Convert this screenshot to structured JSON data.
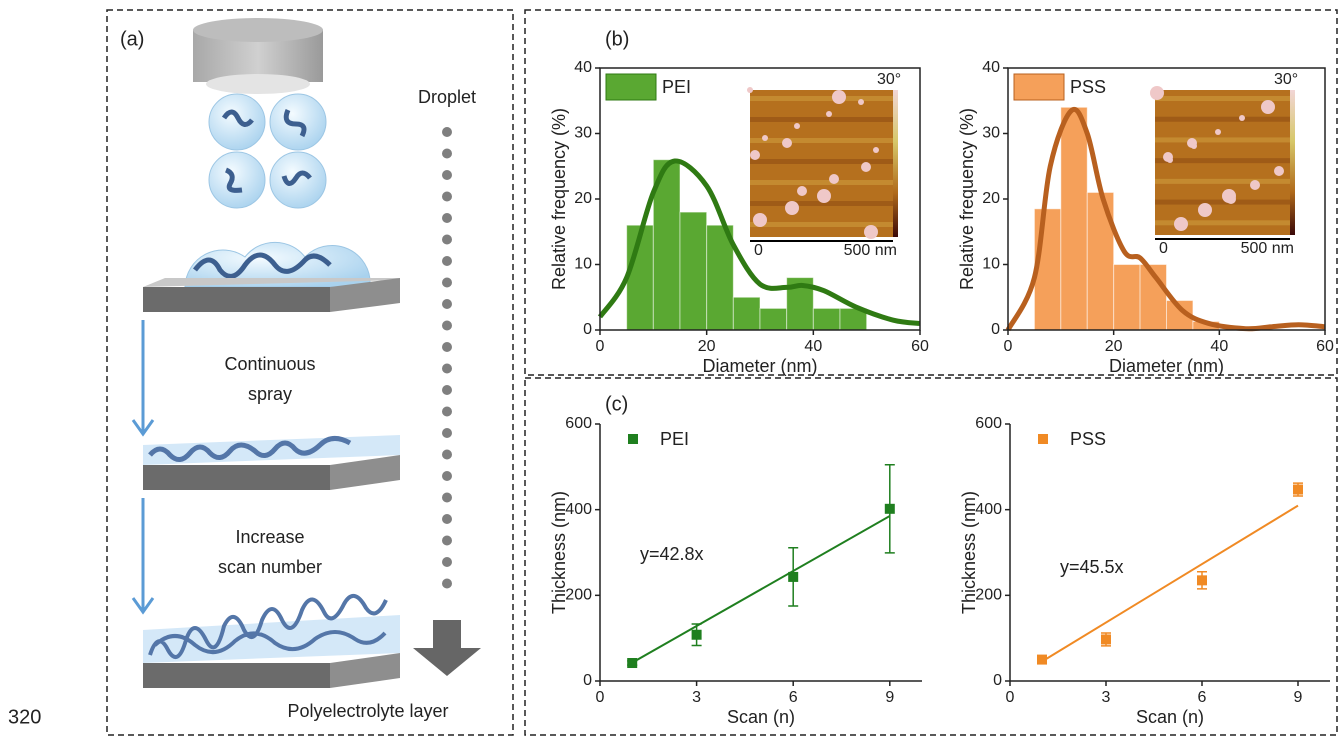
{
  "page_number": "320",
  "panel_labels": [
    "(a)",
    "(b)",
    "(c)"
  ],
  "diagram": {
    "droplet": "Droplet",
    "step1": [
      "Continuous",
      "spray"
    ],
    "step2": [
      "Increase",
      "scan number"
    ],
    "result": "Polyelectrolyte layer"
  },
  "chart_data": [
    {
      "type": "histogram",
      "x_label": "Diameter (nm)",
      "y_label": "Relative frequency (%)",
      "xlim": [
        0,
        60
      ],
      "xticks": [
        0,
        20,
        40,
        60
      ],
      "ylim": [
        0,
        40
      ],
      "yticks": [
        0,
        10,
        20,
        30,
        40
      ],
      "frame": true,
      "legend": "upper left",
      "bins": [
        5,
        10,
        15,
        20,
        25,
        30,
        35,
        40,
        45,
        50
      ],
      "series": [
        {
          "name": "PEI",
          "color": "#5aa832",
          "values": [
            16,
            26,
            18,
            16,
            5,
            3.3,
            8,
            3.3,
            3.3
          ]
        }
      ],
      "fit_curve": {
        "color": "#2f7a13",
        "x": [
          0,
          5,
          10,
          14,
          20,
          25,
          30,
          35,
          38,
          42,
          48,
          55,
          60
        ],
        "y": [
          2,
          8,
          21,
          25.8,
          22,
          13,
          7,
          6.5,
          6.8,
          6,
          3.5,
          1.5,
          1
        ]
      },
      "inset": {
        "scale_label": "30°",
        "x_labels": [
          "0",
          "500 nm"
        ]
      }
    },
    {
      "type": "histogram",
      "x_label": "Diameter (nm)",
      "y_label": "Relative frequency (%)",
      "xlim": [
        0,
        60
      ],
      "xticks": [
        0,
        20,
        40,
        60
      ],
      "ylim": [
        0,
        40
      ],
      "yticks": [
        0,
        10,
        20,
        30,
        40
      ],
      "frame": true,
      "legend": "upper left",
      "bins": [
        5,
        10,
        15,
        20,
        25,
        30,
        35,
        40
      ],
      "series": [
        {
          "name": "PSS",
          "color": "#f5a05a",
          "values": [
            18.5,
            34,
            21,
            10,
            10,
            4.5,
            1.3
          ]
        }
      ],
      "fit_curve": {
        "color": "#b8601f",
        "x": [
          0,
          5,
          8,
          12,
          15,
          18,
          22,
          25,
          28,
          33,
          38,
          45,
          50,
          55,
          60
        ],
        "y": [
          0,
          8,
          25,
          33.5,
          30,
          20,
          12,
          11,
          8,
          3,
          1,
          0.2,
          0.5,
          0.8,
          0.5
        ]
      },
      "inset": {
        "scale_label": "30°",
        "x_labels": [
          "0",
          "500 nm"
        ]
      }
    },
    {
      "type": "scatter",
      "x_label": "Scan (n)",
      "y_label": "Thickness (nm)",
      "xlim": [
        0,
        10
      ],
      "xticks": [
        0,
        3,
        6,
        9
      ],
      "ylim": [
        0,
        600
      ],
      "yticks": [
        0,
        200,
        400,
        600
      ],
      "frame": false,
      "legend": "upper left",
      "x": [
        1,
        3,
        6,
        9
      ],
      "series": [
        {
          "name": "PEI",
          "color": "#1f7f1f",
          "values": [
            42,
            108,
            243,
            402
          ],
          "errors": [
            5,
            25,
            68,
            103
          ]
        }
      ],
      "fit": {
        "x": [
          1,
          9
        ],
        "y": [
          42.8,
          385.2
        ]
      },
      "annotation": "y=42.8x"
    },
    {
      "type": "scatter",
      "x_label": "Scan (n)",
      "y_label": "Thickness (nm)",
      "xlim": [
        0,
        10
      ],
      "xticks": [
        0,
        3,
        6,
        9
      ],
      "ylim": [
        0,
        600
      ],
      "yticks": [
        0,
        200,
        400,
        600
      ],
      "frame": false,
      "legend": "upper left",
      "x": [
        1,
        3,
        6,
        9
      ],
      "series": [
        {
          "name": "PSS",
          "color": "#f08a24",
          "values": [
            50,
            97,
            235,
            447
          ],
          "errors": [
            6,
            15,
            20,
            15
          ]
        }
      ],
      "fit": {
        "x": [
          1,
          9
        ],
        "y": [
          45.5,
          409.5
        ]
      },
      "annotation": "y=45.5x"
    }
  ]
}
